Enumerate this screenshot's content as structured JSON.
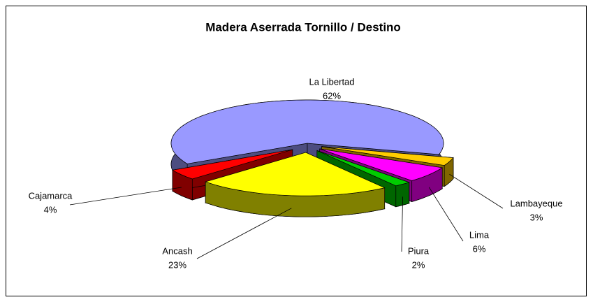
{
  "chart_data": {
    "type": "pie3d",
    "title": "Madera Aserrada Tornillo / Destino",
    "categories": [
      "La Libertad",
      "Lambayeque",
      "Lima",
      "Piura",
      "Ancash",
      "Cajamarca"
    ],
    "values": [
      62,
      3,
      6,
      2,
      23,
      4
    ],
    "value_labels": [
      "62%",
      "3%",
      "6%",
      "2%",
      "23%",
      "4%"
    ],
    "colors": [
      "#9999ff",
      "#ffcc00",
      "#ff00ff",
      "#00cc00",
      "#ffff00",
      "#ff0000"
    ]
  }
}
